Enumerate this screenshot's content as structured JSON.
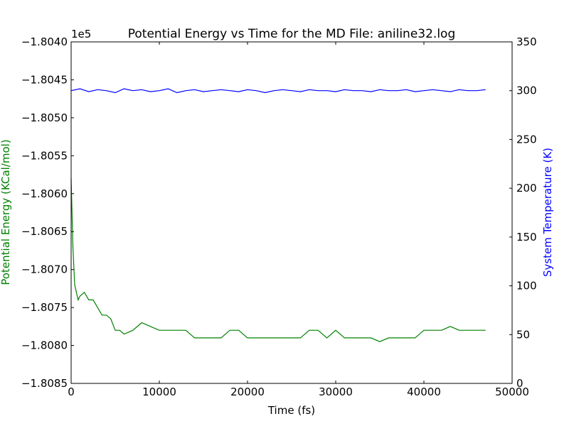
{
  "chart_data": {
    "type": "line",
    "title": "Potential Energy vs Time for the MD File: aniline32.log",
    "xlabel": "Time (fs)",
    "ylabel_left": "Potential Energy (KCal/mol)",
    "ylabel_right": "System Temperature (K)",
    "offset_label": "1e5",
    "xlim": [
      0,
      50000
    ],
    "ylim_left": [
      -1.8085,
      -1.804
    ],
    "ylim_right": [
      0,
      350
    ],
    "x_ticks": [
      0,
      10000,
      20000,
      30000,
      40000,
      50000
    ],
    "x_tick_labels": [
      "0",
      "10000",
      "20000",
      "30000",
      "40000",
      "50000"
    ],
    "y_left_ticks": [
      -1.8085,
      -1.808,
      -1.8075,
      -1.807,
      -1.8065,
      -1.806,
      -1.8055,
      -1.805,
      -1.8045,
      -1.804
    ],
    "y_left_tick_labels": [
      "−1.8085",
      "−1.8080",
      "−1.8075",
      "−1.8070",
      "−1.8065",
      "−1.8060",
      "−1.8055",
      "−1.8050",
      "−1.8045",
      "−1.8040"
    ],
    "y_right_ticks": [
      0,
      50,
      100,
      150,
      200,
      250,
      300,
      350
    ],
    "y_right_tick_labels": [
      "0",
      "50",
      "100",
      "150",
      "200",
      "250",
      "300",
      "350"
    ],
    "grid": false,
    "series": [
      {
        "axis": "left",
        "color": "#008000",
        "x": [
          0,
          200,
          400,
          600,
          800,
          1000,
          1500,
          2000,
          2500,
          3000,
          3500,
          4000,
          4500,
          5000,
          5500,
          6000,
          7000,
          8000,
          9000,
          10000,
          11000,
          12000,
          13000,
          14000,
          15000,
          16000,
          17000,
          18000,
          19000,
          20000,
          21000,
          22000,
          23000,
          24000,
          25000,
          26000,
          27000,
          28000,
          29000,
          30000,
          31000,
          32000,
          33000,
          34000,
          35000,
          36000,
          37000,
          38000,
          39000,
          40000,
          41000,
          42000,
          43000,
          44000,
          45000,
          46000,
          47000
        ],
        "y": [
          -1.8058,
          -1.8067,
          -1.8072,
          -1.8073,
          -1.8074,
          -1.80735,
          -1.8073,
          -1.8074,
          -1.8074,
          -1.8075,
          -1.8076,
          -1.8076,
          -1.80765,
          -1.8078,
          -1.8078,
          -1.80785,
          -1.8078,
          -1.8077,
          -1.80775,
          -1.8078,
          -1.8078,
          -1.8078,
          -1.8078,
          -1.8079,
          -1.8079,
          -1.8079,
          -1.8079,
          -1.8078,
          -1.8078,
          -1.8079,
          -1.8079,
          -1.8079,
          -1.8079,
          -1.8079,
          -1.8079,
          -1.8079,
          -1.8078,
          -1.8078,
          -1.8079,
          -1.8078,
          -1.8079,
          -1.8079,
          -1.8079,
          -1.8079,
          -1.80795,
          -1.8079,
          -1.8079,
          -1.8079,
          -1.8079,
          -1.8078,
          -1.8078,
          -1.8078,
          -1.80775,
          -1.8078,
          -1.8078,
          -1.8078,
          -1.8078
        ]
      },
      {
        "axis": "right",
        "color": "#0000ff",
        "x": [
          0,
          1000,
          2000,
          3000,
          4000,
          5000,
          6000,
          7000,
          8000,
          9000,
          10000,
          11000,
          12000,
          13000,
          14000,
          15000,
          16000,
          17000,
          18000,
          19000,
          20000,
          21000,
          22000,
          23000,
          24000,
          25000,
          26000,
          27000,
          28000,
          29000,
          30000,
          31000,
          32000,
          33000,
          34000,
          35000,
          36000,
          37000,
          38000,
          39000,
          40000,
          41000,
          42000,
          43000,
          44000,
          45000,
          46000,
          47000
        ],
        "y": [
          300,
          302,
          299,
          301,
          300,
          298,
          302,
          300,
          301,
          299,
          300,
          302,
          298,
          300,
          301,
          299,
          300,
          301,
          300,
          299,
          301,
          300,
          298,
          300,
          301,
          300,
          299,
          301,
          300,
          300,
          299,
          301,
          300,
          300,
          299,
          301,
          300,
          300,
          301,
          299,
          300,
          301,
          300,
          299,
          301,
          300,
          300,
          301
        ]
      }
    ]
  }
}
